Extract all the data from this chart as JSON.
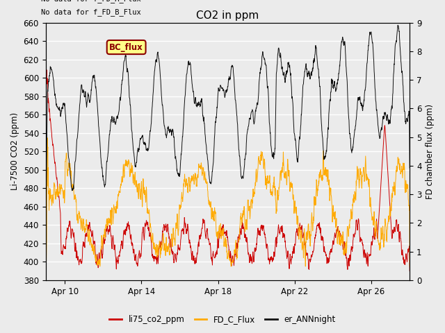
{
  "title": "CO2 in ppm",
  "ylabel_left": "Li-7500 CO2 (ppm)",
  "ylabel_right": "FD chamber flux (ppm)",
  "ylim_left": [
    380,
    660
  ],
  "ylim_right": [
    0.0,
    9.0
  ],
  "yticks_left": [
    380,
    400,
    420,
    440,
    460,
    480,
    500,
    520,
    540,
    560,
    580,
    600,
    620,
    640,
    660
  ],
  "yticks_right": [
    0.0,
    1.0,
    2.0,
    3.0,
    4.0,
    5.0,
    6.0,
    7.0,
    8.0,
    9.0
  ],
  "xtick_labels": [
    "Apr 10",
    "Apr 14",
    "Apr 18",
    "Apr 22",
    "Apr 26"
  ],
  "xtick_positions": [
    1,
    5,
    9,
    13,
    17
  ],
  "xlim": [
    0,
    19
  ],
  "no_data_text1": "No data for f_FD_A_Flux",
  "no_data_text2": "No data for f_FD_B_Flux",
  "bc_flux_label": "BC_flux",
  "legend_labels": [
    "li75_co2_ppm",
    "FD_C_Flux",
    "er_ANNnight"
  ],
  "color_red": "#cc0000",
  "color_orange": "#ffaa00",
  "color_black": "#111111",
  "background_color": "#ebebeb",
  "grid_color": "#ffffff"
}
